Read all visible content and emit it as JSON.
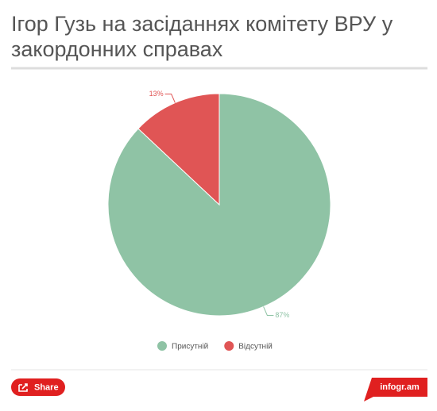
{
  "chart_data": {
    "type": "pie",
    "title": "Ігор Гузь на засіданнях комітету ВРУ у закордонних справах",
    "categories": [
      "Присутній",
      "Відсутній"
    ],
    "values": [
      87,
      13
    ],
    "value_labels": [
      "87%",
      "13%"
    ],
    "colors": [
      "#8fc3a5",
      "#e05555"
    ]
  },
  "footer": {
    "share": "Share",
    "brand": "infogr.am"
  }
}
